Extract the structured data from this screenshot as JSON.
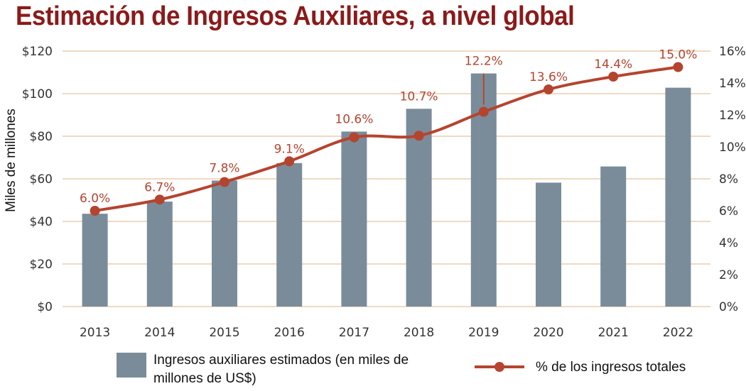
{
  "chart_data": {
    "type": "bar",
    "title": "Estimación de Ingresos Auxiliares, a nivel global",
    "categories": [
      "2013",
      "2014",
      "2015",
      "2016",
      "2017",
      "2018",
      "2019",
      "2020",
      "2021",
      "2022"
    ],
    "series": [
      {
        "name": "Ingresos auxiliares estimados (en miles de millones de US$)",
        "type": "bar",
        "axis": "left",
        "color": "#7a8c99",
        "values": [
          43.6,
          49.3,
          59.2,
          67.4,
          82.2,
          92.9,
          109.5,
          58.2,
          65.8,
          102.8
        ]
      },
      {
        "name": "% de los ingresos totales",
        "type": "line",
        "axis": "right",
        "color": "#b5442f",
        "values": [
          6.0,
          6.7,
          7.8,
          9.1,
          10.6,
          10.7,
          12.2,
          13.6,
          14.4,
          15.0
        ],
        "labels": [
          "6.0%",
          "6.7%",
          "7.8%",
          "9.1%",
          "10.6%",
          "10.7%",
          "12.2%",
          "13.6%",
          "14.4%",
          "15.0%"
        ]
      }
    ],
    "ylabel": "Miles de millones",
    "ylim": [
      0,
      120
    ],
    "y_ticks": [
      "$0",
      "$20",
      "$40",
      "$60",
      "$80",
      "$100",
      "$120"
    ],
    "y2lim": [
      0,
      16
    ],
    "y2_ticks": [
      "0%",
      "2%",
      "4%",
      "6%",
      "8%",
      "10%",
      "12%",
      "14%",
      "16%"
    ],
    "legend": {
      "bar_label_line1": "Ingresos auxiliares estimados (en miles de",
      "bar_label_line2": "millones de US$)",
      "line_label": "% de los ingresos totales"
    },
    "colors": {
      "title": "#8b1a1a",
      "grid": "#f1d9c2",
      "bar": "#7a8c99",
      "line": "#b5442f"
    }
  }
}
